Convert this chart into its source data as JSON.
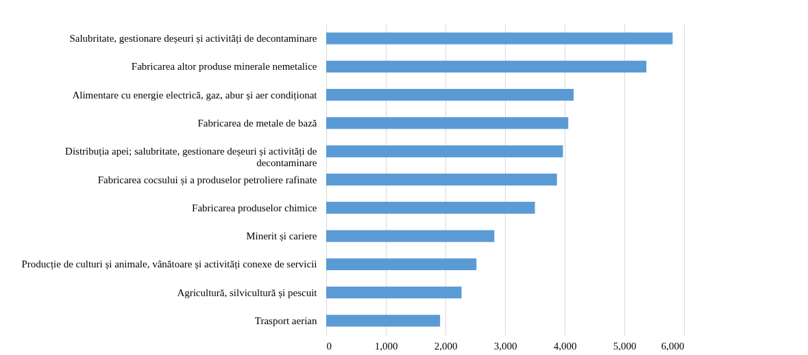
{
  "chart_data": {
    "type": "bar",
    "orientation": "horizontal",
    "categories": [
      "Salubritate, gestionare deșeuri și activități de decontaminare",
      "Fabricarea altor produse minerale nemetalice",
      "Alimentare cu energie electrică, gaz, abur și aer condiționat",
      "Fabricarea de metale de bază",
      "Distribuția apei; salubritate, gestionare deșeuri și activități de decontaminare",
      "Fabricarea cocsului și a produselor petroliere rafinate",
      "Fabricarea produselor chimice",
      "Minerit și cariere",
      "Producție de culturi și animale, vânătoare și activități conexe de servicii",
      "Agricultură, silvicultură și pescuit",
      "Trasport aerian"
    ],
    "values": [
      5810,
      5370,
      4150,
      4060,
      3970,
      3870,
      3500,
      2820,
      2520,
      2270,
      1910
    ],
    "color": "#5b9bd5",
    "xlim": [
      0,
      6000
    ],
    "xticks": [
      {
        "value": 0,
        "label": "0"
      },
      {
        "value": 1000,
        "label": "1,000"
      },
      {
        "value": 2000,
        "label": "2,000"
      },
      {
        "value": 3000,
        "label": "3,000"
      },
      {
        "value": 4000,
        "label": "4,000"
      },
      {
        "value": 5000,
        "label": "5,000"
      },
      {
        "value": 6000,
        "label": "6,000"
      }
    ],
    "grid": "x"
  }
}
